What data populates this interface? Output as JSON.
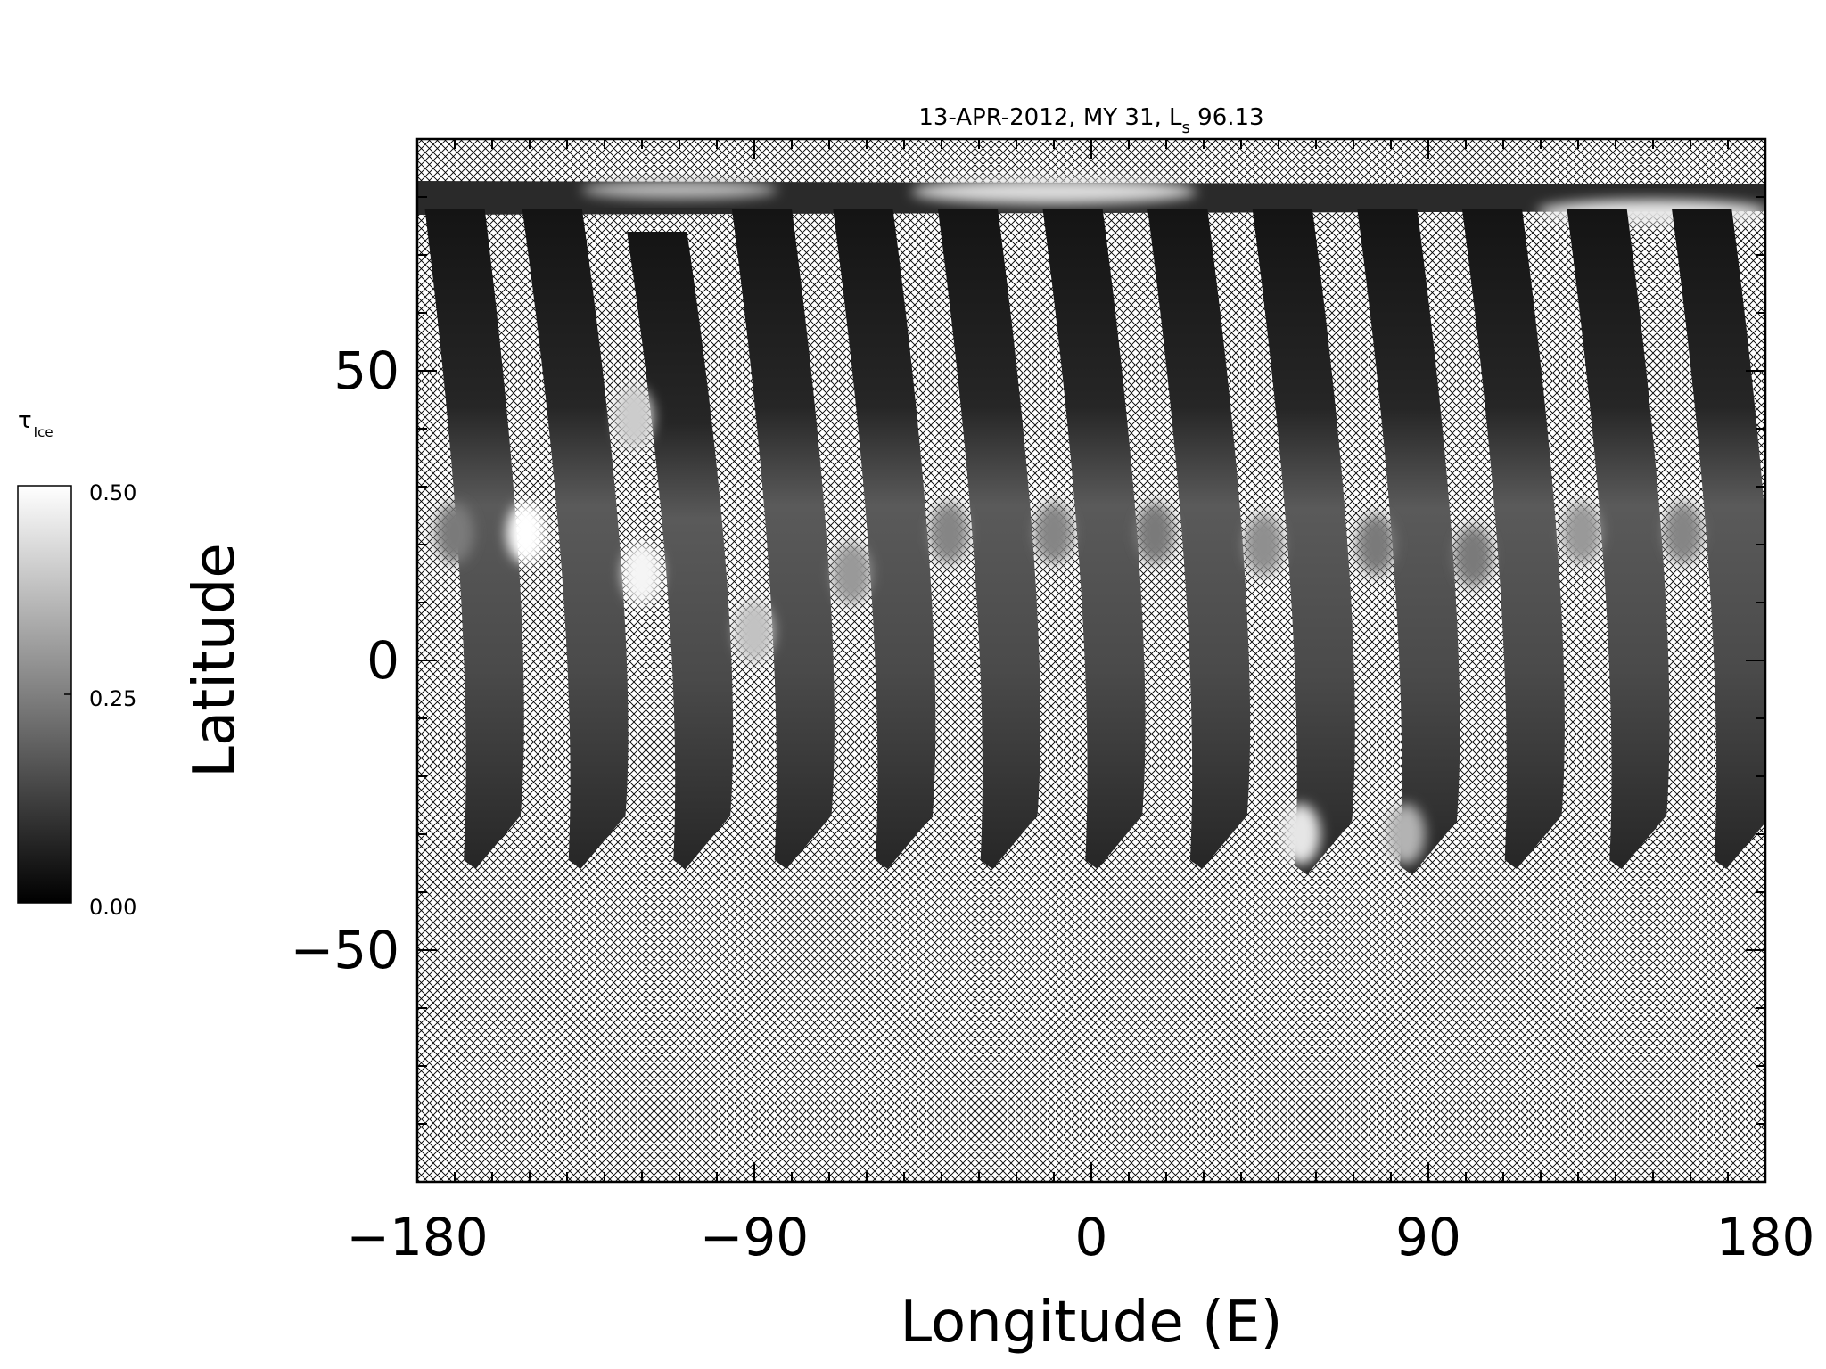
{
  "chart_data": {
    "type": "heatmap",
    "title": {
      "prefix": "13-APR-2012, MY 31,  L",
      "subscript": "s",
      "suffix": " 96.13"
    },
    "xlabel": "Longitude (E)",
    "ylabel": "Latitude",
    "xlim": [
      -180,
      180
    ],
    "ylim": [
      -90,
      90
    ],
    "xticks": [
      -180,
      -90,
      0,
      90,
      180
    ],
    "xtick_labels": [
      "−180",
      "−90",
      "0",
      "90",
      "180"
    ],
    "yticks": [
      -50,
      0,
      50
    ],
    "ytick_labels": [
      "−50",
      "0",
      "50"
    ],
    "x_minor_step": 10,
    "y_minor_step": 10,
    "no_data_pattern": "cross-hatch",
    "colorbar": {
      "label": "τ",
      "label_subscript": "Ice",
      "min": 0.0,
      "max": 0.5,
      "ticks": [
        "0.00",
        "0.25",
        "0.50"
      ],
      "colormap": "grayscale"
    },
    "polar_cap": {
      "lat_top": 84,
      "lat_bottom": 76
    },
    "swaths": [
      {
        "lon_north": -178,
        "lon_south": -162,
        "lat_north": 78,
        "lat_south": -36,
        "width_deg": 16,
        "bright_patches": [
          {
            "lon": -170,
            "lat": 22,
            "value": 0.24
          }
        ]
      },
      {
        "lon_north": -152,
        "lon_south": -134,
        "lat_north": 78,
        "lat_south": -36,
        "width_deg": 16,
        "bright_patches": [
          {
            "lon": -151,
            "lat": 22,
            "value": 0.5
          }
        ]
      },
      {
        "lon_north": -124,
        "lon_south": -106,
        "lat_north": 74,
        "lat_south": -36,
        "width_deg": 16,
        "bright_patches": [
          {
            "lon": -122,
            "lat": 42,
            "value": 0.4
          },
          {
            "lon": -120,
            "lat": 15,
            "value": 0.48
          }
        ]
      },
      {
        "lon_north": -96,
        "lon_south": -79,
        "lat_north": 78,
        "lat_south": -36,
        "width_deg": 16,
        "bright_patches": [
          {
            "lon": -90,
            "lat": 5,
            "value": 0.38
          }
        ]
      },
      {
        "lon_north": -69,
        "lon_south": -52,
        "lat_north": 78,
        "lat_south": -36,
        "width_deg": 16,
        "bright_patches": [
          {
            "lon": -64,
            "lat": 15,
            "value": 0.3
          }
        ]
      },
      {
        "lon_north": -41,
        "lon_south": -24,
        "lat_north": 78,
        "lat_south": -36,
        "width_deg": 16,
        "bright_patches": [
          {
            "lon": -38,
            "lat": 22,
            "value": 0.26
          }
        ]
      },
      {
        "lon_north": -13,
        "lon_south": 4,
        "lat_north": 78,
        "lat_south": -36,
        "width_deg": 16,
        "bright_patches": [
          {
            "lon": -10,
            "lat": 22,
            "value": 0.26
          }
        ]
      },
      {
        "lon_north": 15,
        "lon_south": 32,
        "lat_north": 78,
        "lat_south": -36,
        "width_deg": 16,
        "bright_patches": [
          {
            "lon": 17,
            "lat": 22,
            "value": 0.24
          }
        ]
      },
      {
        "lon_north": 43,
        "lon_south": 60,
        "lat_north": 78,
        "lat_south": -37,
        "width_deg": 16,
        "bright_patches": [
          {
            "lon": 46,
            "lat": 20,
            "value": 0.28
          },
          {
            "lon": 56,
            "lat": -30,
            "value": 0.45
          }
        ]
      },
      {
        "lon_north": 71,
        "lon_south": 88,
        "lat_north": 78,
        "lat_south": -37,
        "width_deg": 16,
        "bright_patches": [
          {
            "lon": 76,
            "lat": 20,
            "value": 0.24
          },
          {
            "lon": 84,
            "lat": -30,
            "value": 0.35
          }
        ]
      },
      {
        "lon_north": 99,
        "lon_south": 116,
        "lat_north": 78,
        "lat_south": -36,
        "width_deg": 16,
        "bright_patches": [
          {
            "lon": 102,
            "lat": 18,
            "value": 0.24
          }
        ]
      },
      {
        "lon_north": 127,
        "lon_south": 144,
        "lat_north": 78,
        "lat_south": -36,
        "width_deg": 16,
        "bright_patches": [
          {
            "lon": 131,
            "lat": 22,
            "value": 0.3
          }
        ]
      },
      {
        "lon_north": 155,
        "lon_south": 172,
        "lat_north": 78,
        "lat_south": -36,
        "width_deg": 16,
        "bright_patches": [
          {
            "lon": 158,
            "lat": 22,
            "value": 0.26
          }
        ]
      }
    ]
  }
}
